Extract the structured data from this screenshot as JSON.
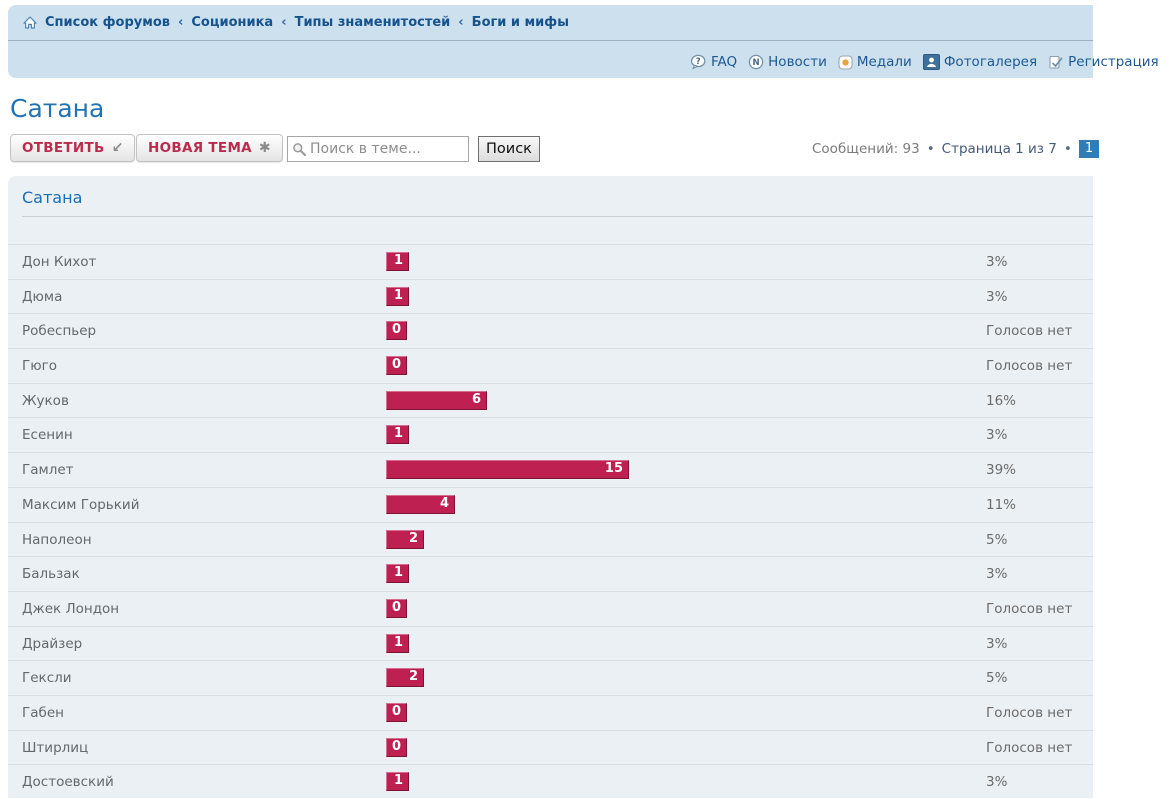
{
  "breadcrumb": {
    "separator": "‹",
    "items": [
      "Список форумов",
      "Соционика",
      "Типы знаменитостей",
      "Боги и мифы"
    ]
  },
  "header_links": [
    {
      "label": "FAQ",
      "icon": "faq-icon"
    },
    {
      "label": "Новости",
      "icon": "news-icon"
    },
    {
      "label": "Медали",
      "icon": "medals-icon"
    },
    {
      "label": "Фотогалерея",
      "icon": "photo-gallery-icon"
    },
    {
      "label": "Регистрация",
      "icon": "register-icon"
    }
  ],
  "page": {
    "title": "Сатана"
  },
  "toolbar": {
    "reply_label": "ОТВЕТИТЬ",
    "reply_glyph": "↙",
    "new_topic_label": "НОВАЯ ТЕМА",
    "new_topic_glyph": "✱",
    "search_placeholder": "Поиск в теме...",
    "search_button_label": "Поиск"
  },
  "pagination": {
    "messages_text": "Сообщений: 93",
    "bullet": "•",
    "page_text": "Страница 1 из 7",
    "current_page": "1"
  },
  "poll": {
    "title": "Сатана",
    "no_votes_label": "Голосов нет",
    "options": [
      {
        "label": "Дон Кихот",
        "votes": 1,
        "percent": "3%"
      },
      {
        "label": "Дюма",
        "votes": 1,
        "percent": "3%"
      },
      {
        "label": "Робеспьер",
        "votes": 0,
        "percent": null
      },
      {
        "label": "Гюго",
        "votes": 0,
        "percent": null
      },
      {
        "label": "Жуков",
        "votes": 6,
        "percent": "16%"
      },
      {
        "label": "Есенин",
        "votes": 1,
        "percent": "3%"
      },
      {
        "label": "Гамлет",
        "votes": 15,
        "percent": "39%"
      },
      {
        "label": "Максим Горький",
        "votes": 4,
        "percent": "11%"
      },
      {
        "label": "Наполеон",
        "votes": 2,
        "percent": "5%"
      },
      {
        "label": "Бальзак",
        "votes": 1,
        "percent": "3%"
      },
      {
        "label": "Джек Лондон",
        "votes": 0,
        "percent": null
      },
      {
        "label": "Драйзер",
        "votes": 1,
        "percent": "3%"
      },
      {
        "label": "Гексли",
        "votes": 2,
        "percent": "5%"
      },
      {
        "label": "Габен",
        "votes": 0,
        "percent": null
      },
      {
        "label": "Штирлиц",
        "votes": 0,
        "percent": null
      },
      {
        "label": "Достоевский",
        "votes": 1,
        "percent": "3%"
      }
    ]
  },
  "colors": {
    "band_bg": "#cde0ee",
    "panel_bg": "#ebf0f4",
    "bar": "#be2151",
    "bar_border_dark": "#7e1434",
    "link_blue": "#1d5a94",
    "title_blue": "#2273b4",
    "button_red": "#bc2a4d",
    "current_page_bg": "#2e7cb8"
  }
}
